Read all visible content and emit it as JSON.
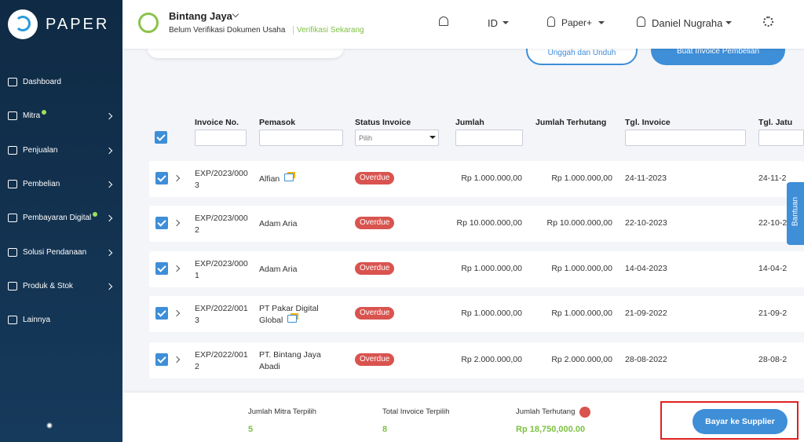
{
  "sidebar": {
    "brand": "PAPER",
    "menu": [
      {
        "label": "Dashboard",
        "badge": false,
        "submenu": false
      },
      {
        "label": "Mitra",
        "badge": true,
        "submenu": true
      },
      {
        "label": "Penjualan",
        "badge": false,
        "submenu": true
      },
      {
        "label": "Pembelian",
        "badge": false,
        "submenu": true
      },
      {
        "label": "Pembayaran Digital",
        "badge": true,
        "submenu": true
      },
      {
        "label": "Solusi Pendanaan",
        "badge": false,
        "submenu": true
      },
      {
        "label": "Produk & Stok",
        "badge": false,
        "submenu": true
      },
      {
        "label": "Lainnya",
        "badge": false,
        "submenu": false
      }
    ]
  },
  "header": {
    "business_name": "Bintang Jaya",
    "verification_note": "Belum Verifikasi Dokumen Usaha",
    "verify_link": "Verifikasi Sekarang",
    "language": "ID",
    "plan": "Paper+",
    "user": "Daniel Nugraha"
  },
  "toolbar": {
    "buttons": [
      "Unggah dan Unduh",
      "Buat Invoice Pembelian"
    ]
  },
  "table": {
    "columns": [
      "Invoice No.",
      "Pemasok",
      "Status Invoice",
      "Jumlah",
      "Jumlah Terhutang",
      "Tgl. Invoice",
      "Tgl. Jatu"
    ],
    "status_filter_placeholder": "Pilih",
    "rows": [
      [
        "EXP/2023/0003",
        "Alfian",
        "Overdue",
        "Rp 1.000.000,00",
        "Rp 1.000.000,00",
        "24-11-2023",
        "24-11-2"
      ],
      [
        "EXP/2023/0002",
        "Adam Aria",
        "Overdue",
        "Rp 10.000.000,00",
        "Rp 10.000.000,00",
        "22-10-2023",
        "22-10-2"
      ],
      [
        "EXP/2023/0001",
        "Adam Aria",
        "Overdue",
        "Rp 1.000.000,00",
        "Rp 1.000.000,00",
        "14-04-2023",
        "14-04-2"
      ],
      [
        "EXP/2022/0013",
        "PT Pakar Digital Global",
        "Overdue",
        "Rp 1.000.000,00",
        "Rp 1.000.000,00",
        "21-09-2022",
        "21-09-2"
      ],
      [
        "EXP/2022/0012",
        "PT. Bintang Jaya Abadi",
        "Overdue",
        "Rp 2.000.000,00",
        "Rp 2.000.000,00",
        "28-08-2022",
        "28-08-2"
      ]
    ]
  },
  "help_tab": "Bantuan",
  "footer": {
    "summary": [
      {
        "label": "Jumlah Mitra Terpilih",
        "value": "5"
      },
      {
        "label": "Total Invoice Terpilih",
        "value": "8"
      },
      {
        "label": "Jumlah Terhutang",
        "value": "Rp 18,750,000.00"
      }
    ],
    "button": "Bayar ke Supplier"
  }
}
